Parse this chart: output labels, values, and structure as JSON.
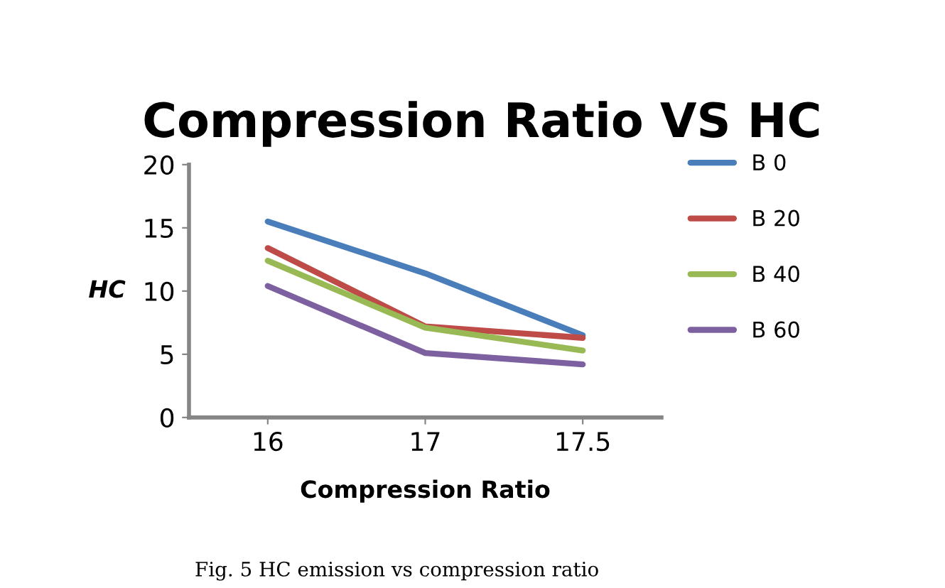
{
  "chart_data": {
    "type": "line",
    "title": "Compression Ratio VS HC",
    "xlabel": "Compression Ratio",
    "ylabel": "HC",
    "categories": [
      "16",
      "17",
      "17.5"
    ],
    "series": [
      {
        "name": "B 0",
        "color": "#4a7ebb",
        "values": [
          15.5,
          11.4,
          6.5
        ]
      },
      {
        "name": "B 20",
        "color": "#be4b48",
        "values": [
          13.4,
          7.2,
          6.3
        ]
      },
      {
        "name": "B 40",
        "color": "#98b954",
        "values": [
          12.4,
          7.1,
          5.3
        ]
      },
      {
        "name": "B 60",
        "color": "#7d60a0",
        "values": [
          10.4,
          5.1,
          4.2
        ]
      }
    ],
    "ylim": [
      0,
      20
    ],
    "yticks": [
      0,
      5,
      10,
      15,
      20
    ],
    "grid": false,
    "legend": "right",
    "marker": "none",
    "line_style": "solid",
    "annotations": [
      "Fig. 5 HC emission vs compression ratio"
    ]
  }
}
